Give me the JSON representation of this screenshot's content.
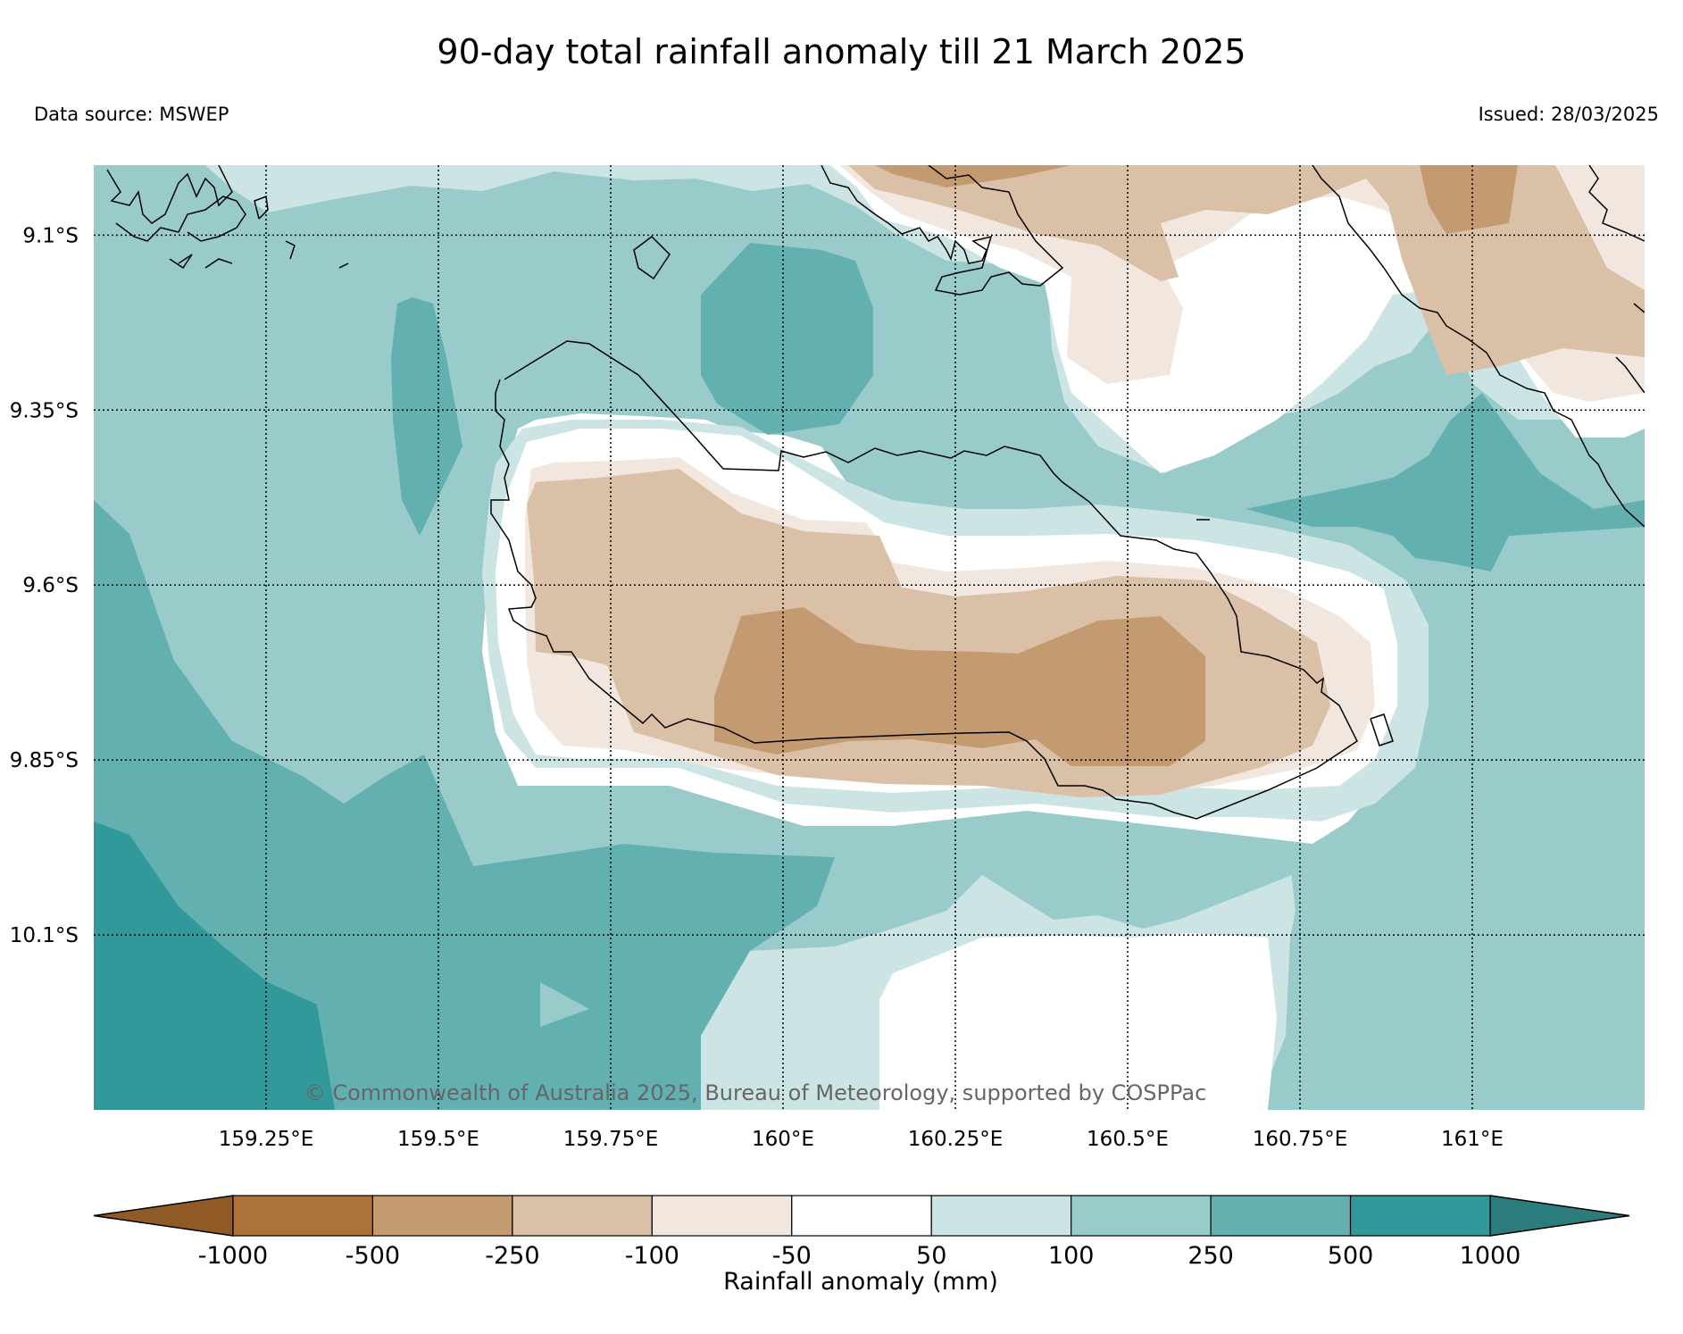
{
  "title": "90-day total rainfall anomaly till 21 March 2025",
  "data_source": "Data source: MSWEP",
  "issued": "Issued: 28/03/2025",
  "copyright": "© Commonwealth of Australia 2025, Bureau of Meteorology, supported by COSPPac",
  "map": {
    "lon_range": [
      159.0,
      161.25
    ],
    "lat_range": [
      -10.35,
      -9.0
    ],
    "lon_ticks": [
      159.25,
      159.5,
      159.75,
      160.0,
      160.25,
      160.5,
      160.75,
      161.0
    ],
    "lon_labels": [
      "159.25°E",
      "159.5°E",
      "159.75°E",
      "160°E",
      "160.25°E",
      "160.5°E",
      "160.75°E",
      "161°E"
    ],
    "lat_ticks": [
      -9.1,
      -9.35,
      -9.6,
      -9.85,
      -10.1
    ],
    "lat_labels": [
      "9.1°S",
      "9.35°S",
      "9.6°S",
      "9.85°S",
      "10.1°S"
    ],
    "gridlines": true
  },
  "colorbar": {
    "label": "Rainfall anomaly (mm)",
    "tick_labels": [
      "-1000",
      "-500",
      "-250",
      "-100",
      "-50",
      "50",
      "100",
      "250",
      "500",
      "1000"
    ],
    "colors": [
      "#ac7238",
      "#c49a70",
      "#dbc0a8",
      "#f1e7df",
      "#ffffff",
      "#cce5e4",
      "#99cbcb",
      "#63b0b1",
      "#32999a"
    ],
    "under_color": "#8f5a26",
    "over_color": "#2b7c7c"
  }
}
